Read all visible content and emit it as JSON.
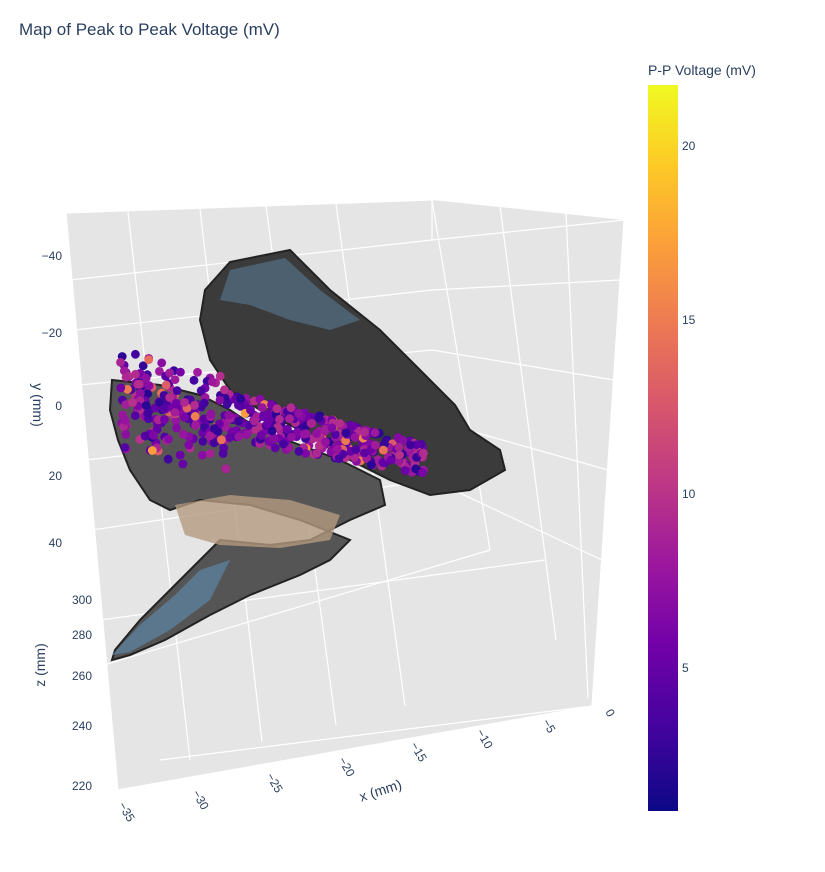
{
  "title": "Map of Peak to Peak Voltage (mV)",
  "chart_data": {
    "type": "scatter3d",
    "title": "Map of Peak to Peak Voltage (mV)",
    "xlabel": "x (mm)",
    "ylabel": "y (mm)",
    "zlabel": "z (mm)",
    "x_ticks": [
      "−35",
      "−30",
      "−25",
      "−20",
      "−15",
      "−10",
      "−5",
      "0"
    ],
    "y_ticks": [
      "−40",
      "−20",
      "0",
      "20",
      "40"
    ],
    "z_ticks": [
      "300",
      "280",
      "260",
      "240",
      "220"
    ],
    "colorbar": {
      "title": "P-P Voltage (mV)",
      "ticks": [
        "20",
        "15",
        "10",
        "5"
      ],
      "range": [
        1,
        22
      ],
      "colorscale": "plasma"
    },
    "surface_mesh": "dark grey triangulated anatomical mesh with blue/tan shading",
    "points_note": "Cluster of voltage sample points, mostly 2-10 mV, a few 12-18 mV"
  }
}
